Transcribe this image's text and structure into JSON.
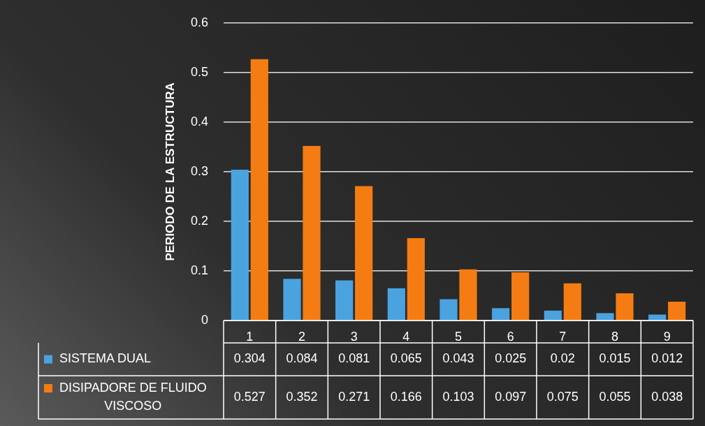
{
  "chart_data": {
    "type": "bar",
    "ylabel": "PERIODO DE LA ESTRUCTURA",
    "categories": [
      "1",
      "2",
      "3",
      "4",
      "5",
      "6",
      "7",
      "8",
      "9"
    ],
    "series": [
      {
        "name": "SISTEMA DUAL",
        "color": "#4aa3df",
        "values": [
          0.304,
          0.084,
          0.081,
          0.065,
          0.043,
          0.025,
          0.02,
          0.015,
          0.012
        ]
      },
      {
        "name": "DISIPADORE DE FLUIDO VISCOSO",
        "color": "#f57c12",
        "values": [
          0.527,
          0.352,
          0.271,
          0.166,
          0.103,
          0.097,
          0.075,
          0.055,
          0.038
        ]
      }
    ],
    "ylim": [
      0,
      0.6
    ],
    "yticks": [
      0,
      0.1,
      0.2,
      0.3,
      0.4,
      0.5,
      0.6
    ],
    "grid": "y",
    "legend": "bottom",
    "data_labels": true
  }
}
